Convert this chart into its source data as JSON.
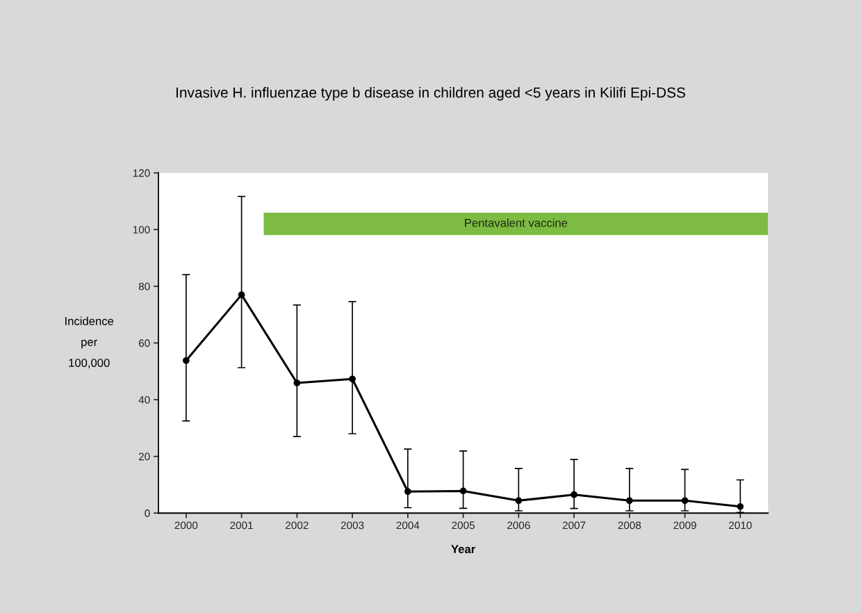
{
  "chart_data": {
    "type": "line",
    "title": "Invasive H. influenzae type b disease in children aged <5 years in Kilifi Epi-DSS",
    "xlabel": "Year",
    "ylabel": "Incidence\nper\n100,000",
    "x": [
      2000,
      2001,
      2002,
      2003,
      2004,
      2005,
      2006,
      2007,
      2008,
      2009,
      2010
    ],
    "xlim": [
      1999.5,
      2010.5
    ],
    "xticks": [
      2000,
      2001,
      2002,
      2003,
      2004,
      2005,
      2006,
      2007,
      2008,
      2009,
      2010
    ],
    "ylim": [
      0,
      120
    ],
    "yticks": [
      0,
      20,
      40,
      60,
      80,
      100,
      120
    ],
    "grid": false,
    "legend": false,
    "line_style": "solid",
    "bands": [
      {
        "axis": "x",
        "from": 2001.4,
        "to": 2010.5,
        "label": "Pentavalent vaccine",
        "color": "#7dbb42"
      }
    ],
    "series": [
      {
        "color": "#000000",
        "marker": "circle",
        "values": [
          53.8,
          77.0,
          45.9,
          47.3,
          7.6,
          7.8,
          4.4,
          6.5,
          4.4,
          4.4,
          2.3
        ],
        "errors": [
          [
            32.5,
            84.1
          ],
          [
            51.3,
            111.7
          ],
          [
            27.0,
            73.4
          ],
          [
            28.0,
            74.6
          ],
          [
            1.9,
            22.6
          ],
          [
            1.7,
            21.9
          ],
          [
            0.8,
            15.7
          ],
          [
            1.6,
            18.9
          ],
          [
            0.8,
            15.7
          ],
          [
            0.8,
            15.4
          ],
          [
            0.2,
            11.7
          ]
        ]
      }
    ]
  }
}
